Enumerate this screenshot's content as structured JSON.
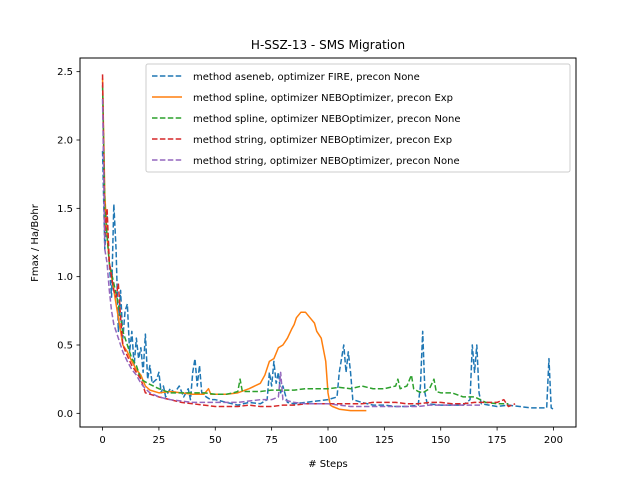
{
  "chart_data": {
    "type": "line",
    "title": "H-SSZ-13 - SMS Migration",
    "xlabel": "# Steps",
    "ylabel": "Fmax / Ha/Bohr",
    "xlim": [
      -10,
      210
    ],
    "ylim": [
      -0.1,
      2.6
    ],
    "xticks": [
      0,
      25,
      50,
      75,
      100,
      125,
      150,
      175,
      200
    ],
    "yticks": [
      0.0,
      0.5,
      1.0,
      1.5,
      2.0,
      2.5
    ],
    "xtick_labels": [
      "0",
      "25",
      "50",
      "75",
      "100",
      "125",
      "150",
      "175",
      "200"
    ],
    "ytick_labels": [
      "0.0",
      "0.5",
      "1.0",
      "1.5",
      "2.0",
      "2.5"
    ],
    "grid": false,
    "legend_position": "upper-right",
    "series": [
      {
        "name": "method aseneb, optimizer FIRE, precon None",
        "color": "#1f77b4",
        "dash": "dashed",
        "points": [
          [
            0,
            1.92
          ],
          [
            1,
            1.2
          ],
          [
            2,
            1.45
          ],
          [
            3,
            1.1
          ],
          [
            4,
            0.85
          ],
          [
            5,
            1.53
          ],
          [
            6,
            1.2
          ],
          [
            7,
            0.6
          ],
          [
            8,
            0.9
          ],
          [
            9,
            0.55
          ],
          [
            10,
            0.75
          ],
          [
            11,
            0.8
          ],
          [
            12,
            0.45
          ],
          [
            13,
            0.6
          ],
          [
            14,
            0.35
          ],
          [
            15,
            0.55
          ],
          [
            16,
            0.4
          ],
          [
            17,
            0.48
          ],
          [
            18,
            0.3
          ],
          [
            19,
            0.58
          ],
          [
            20,
            0.25
          ],
          [
            21,
            0.35
          ],
          [
            22,
            0.22
          ],
          [
            24,
            0.25
          ],
          [
            25,
            0.3
          ],
          [
            26,
            0.15
          ],
          [
            27,
            0.2
          ],
          [
            28,
            0.12
          ],
          [
            30,
            0.18
          ],
          [
            32,
            0.15
          ],
          [
            34,
            0.2
          ],
          [
            36,
            0.12
          ],
          [
            38,
            0.18
          ],
          [
            39,
            0.1
          ],
          [
            40,
            0.3
          ],
          [
            41,
            0.4
          ],
          [
            42,
            0.2
          ],
          [
            43,
            0.35
          ],
          [
            44,
            0.15
          ],
          [
            46,
            0.12
          ],
          [
            48,
            0.1
          ],
          [
            50,
            0.1
          ],
          [
            55,
            0.08
          ],
          [
            60,
            0.06
          ],
          [
            65,
            0.08
          ],
          [
            70,
            0.07
          ],
          [
            73,
            0.1
          ],
          [
            74,
            0.3
          ],
          [
            75,
            0.2
          ],
          [
            76,
            0.38
          ],
          [
            77,
            0.22
          ],
          [
            78,
            0.3
          ],
          [
            79,
            0.15
          ],
          [
            80,
            0.2
          ],
          [
            82,
            0.08
          ],
          [
            85,
            0.07
          ],
          [
            90,
            0.08
          ],
          [
            95,
            0.09
          ],
          [
            100,
            0.1
          ],
          [
            104,
            0.12
          ],
          [
            105,
            0.3
          ],
          [
            107,
            0.5
          ],
          [
            108,
            0.3
          ],
          [
            109,
            0.45
          ],
          [
            110,
            0.3
          ],
          [
            111,
            0.1
          ],
          [
            115,
            0.08
          ],
          [
            120,
            0.06
          ],
          [
            125,
            0.06
          ],
          [
            130,
            0.05
          ],
          [
            135,
            0.05
          ],
          [
            140,
            0.06
          ],
          [
            141,
            0.2
          ],
          [
            142,
            0.6
          ],
          [
            143,
            0.15
          ],
          [
            144,
            0.07
          ],
          [
            150,
            0.06
          ],
          [
            155,
            0.06
          ],
          [
            160,
            0.06
          ],
          [
            163,
            0.1
          ],
          [
            164,
            0.5
          ],
          [
            165,
            0.3
          ],
          [
            166,
            0.5
          ],
          [
            167,
            0.15
          ],
          [
            168,
            0.07
          ],
          [
            175,
            0.05
          ],
          [
            180,
            0.06
          ],
          [
            185,
            0.05
          ],
          [
            190,
            0.04
          ],
          [
            195,
            0.04
          ],
          [
            197,
            0.04
          ],
          [
            198,
            0.4
          ],
          [
            199,
            0.04
          ],
          [
            200,
            0.03
          ]
        ]
      },
      {
        "name": "method spline, optimizer NEBOptimizer, precon Exp",
        "color": "#ff7f0e",
        "dash": "solid",
        "points": [
          [
            0,
            2.45
          ],
          [
            1,
            1.6
          ],
          [
            2,
            1.3
          ],
          [
            3,
            1.1
          ],
          [
            5,
            0.9
          ],
          [
            7,
            0.7
          ],
          [
            9,
            0.5
          ],
          [
            11,
            0.45
          ],
          [
            13,
            0.38
          ],
          [
            15,
            0.32
          ],
          [
            17,
            0.28
          ],
          [
            19,
            0.2
          ],
          [
            21,
            0.17
          ],
          [
            25,
            0.15
          ],
          [
            30,
            0.16
          ],
          [
            35,
            0.15
          ],
          [
            40,
            0.14
          ],
          [
            45,
            0.14
          ],
          [
            47,
            0.18
          ],
          [
            48,
            0.14
          ],
          [
            50,
            0.14
          ],
          [
            55,
            0.14
          ],
          [
            60,
            0.15
          ],
          [
            65,
            0.18
          ],
          [
            70,
            0.22
          ],
          [
            72,
            0.28
          ],
          [
            74,
            0.38
          ],
          [
            76,
            0.4
          ],
          [
            78,
            0.48
          ],
          [
            80,
            0.5
          ],
          [
            82,
            0.55
          ],
          [
            84,
            0.62
          ],
          [
            85,
            0.65
          ],
          [
            86,
            0.7
          ],
          [
            88,
            0.74
          ],
          [
            90,
            0.74
          ],
          [
            92,
            0.7
          ],
          [
            94,
            0.66
          ],
          [
            95,
            0.6
          ],
          [
            97,
            0.55
          ],
          [
            99,
            0.38
          ],
          [
            100,
            0.15
          ],
          [
            101,
            0.06
          ],
          [
            102,
            0.05
          ],
          [
            105,
            0.03
          ],
          [
            110,
            0.02
          ],
          [
            115,
            0.02
          ],
          [
            117,
            0.02
          ]
        ]
      },
      {
        "name": "method spline, optimizer NEBOptimizer, precon None",
        "color": "#2ca02c",
        "dash": "dashed",
        "points": [
          [
            0,
            2.4
          ],
          [
            1,
            1.5
          ],
          [
            2,
            1.3
          ],
          [
            3,
            1.1
          ],
          [
            5,
            0.95
          ],
          [
            7,
            0.8
          ],
          [
            9,
            0.6
          ],
          [
            11,
            0.5
          ],
          [
            13,
            0.4
          ],
          [
            15,
            0.35
          ],
          [
            17,
            0.25
          ],
          [
            20,
            0.22
          ],
          [
            25,
            0.18
          ],
          [
            30,
            0.15
          ],
          [
            35,
            0.15
          ],
          [
            40,
            0.15
          ],
          [
            45,
            0.15
          ],
          [
            50,
            0.14
          ],
          [
            55,
            0.14
          ],
          [
            58,
            0.15
          ],
          [
            60,
            0.16
          ],
          [
            61,
            0.25
          ],
          [
            62,
            0.16
          ],
          [
            65,
            0.16
          ],
          [
            70,
            0.16
          ],
          [
            75,
            0.17
          ],
          [
            80,
            0.17
          ],
          [
            85,
            0.17
          ],
          [
            90,
            0.18
          ],
          [
            95,
            0.18
          ],
          [
            100,
            0.18
          ],
          [
            105,
            0.19
          ],
          [
            110,
            0.18
          ],
          [
            115,
            0.2
          ],
          [
            120,
            0.18
          ],
          [
            125,
            0.18
          ],
          [
            130,
            0.2
          ],
          [
            131,
            0.25
          ],
          [
            132,
            0.18
          ],
          [
            135,
            0.2
          ],
          [
            137,
            0.28
          ],
          [
            138,
            0.18
          ],
          [
            140,
            0.16
          ],
          [
            142,
            0.15
          ],
          [
            145,
            0.18
          ],
          [
            147,
            0.25
          ],
          [
            148,
            0.16
          ],
          [
            150,
            0.15
          ],
          [
            155,
            0.15
          ],
          [
            160,
            0.12
          ],
          [
            165,
            0.12
          ],
          [
            170,
            0.08
          ],
          [
            175,
            0.07
          ],
          [
            180,
            0.07
          ]
        ]
      },
      {
        "name": "method string, optimizer NEBOptimizer, precon Exp",
        "color": "#d62728",
        "dash": "dashed",
        "points": [
          [
            0,
            2.48
          ],
          [
            1,
            1.3
          ],
          [
            2,
            1.5
          ],
          [
            3,
            1.1
          ],
          [
            4,
            1.0
          ],
          [
            5,
            0.9
          ],
          [
            6,
            0.85
          ],
          [
            7,
            0.95
          ],
          [
            8,
            0.7
          ],
          [
            9,
            0.5
          ],
          [
            11,
            0.42
          ],
          [
            13,
            0.35
          ],
          [
            15,
            0.3
          ],
          [
            17,
            0.25
          ],
          [
            19,
            0.15
          ],
          [
            21,
            0.14
          ],
          [
            25,
            0.12
          ],
          [
            30,
            0.1
          ],
          [
            35,
            0.08
          ],
          [
            40,
            0.07
          ],
          [
            45,
            0.06
          ],
          [
            50,
            0.05
          ],
          [
            55,
            0.05
          ],
          [
            60,
            0.05
          ],
          [
            65,
            0.06
          ],
          [
            70,
            0.05
          ],
          [
            75,
            0.05
          ],
          [
            80,
            0.06
          ],
          [
            85,
            0.06
          ],
          [
            90,
            0.07
          ],
          [
            95,
            0.07
          ],
          [
            100,
            0.07
          ],
          [
            105,
            0.07
          ],
          [
            110,
            0.07
          ],
          [
            115,
            0.07
          ],
          [
            120,
            0.08
          ],
          [
            125,
            0.08
          ],
          [
            130,
            0.08
          ],
          [
            135,
            0.07
          ],
          [
            140,
            0.07
          ],
          [
            145,
            0.08
          ],
          [
            150,
            0.08
          ],
          [
            155,
            0.07
          ],
          [
            160,
            0.07
          ],
          [
            165,
            0.08
          ],
          [
            170,
            0.08
          ],
          [
            175,
            0.08
          ],
          [
            178,
            0.1
          ],
          [
            180,
            0.05
          ],
          [
            183,
            0.07
          ]
        ]
      },
      {
        "name": "method string, optimizer NEBOptimizer, precon None",
        "color": "#9467bd",
        "dash": "dashed",
        "points": [
          [
            0,
            2.3
          ],
          [
            1,
            1.2
          ],
          [
            2,
            1.1
          ],
          [
            3,
            0.9
          ],
          [
            4,
            0.75
          ],
          [
            5,
            0.65
          ],
          [
            6,
            0.6
          ],
          [
            7,
            0.55
          ],
          [
            9,
            0.45
          ],
          [
            11,
            0.38
          ],
          [
            13,
            0.32
          ],
          [
            15,
            0.28
          ],
          [
            17,
            0.22
          ],
          [
            19,
            0.18
          ],
          [
            21,
            0.15
          ],
          [
            25,
            0.12
          ],
          [
            30,
            0.1
          ],
          [
            35,
            0.09
          ],
          [
            40,
            0.08
          ],
          [
            45,
            0.08
          ],
          [
            50,
            0.08
          ],
          [
            55,
            0.08
          ],
          [
            60,
            0.08
          ],
          [
            65,
            0.09
          ],
          [
            70,
            0.1
          ],
          [
            75,
            0.1
          ],
          [
            78,
            0.12
          ],
          [
            79,
            0.3
          ],
          [
            80,
            0.1
          ],
          [
            85,
            0.08
          ],
          [
            90,
            0.07
          ],
          [
            95,
            0.07
          ],
          [
            100,
            0.07
          ],
          [
            105,
            0.06
          ],
          [
            110,
            0.05
          ],
          [
            115,
            0.05
          ],
          [
            120,
            0.05
          ],
          [
            125,
            0.05
          ],
          [
            130,
            0.05
          ],
          [
            135,
            0.05
          ],
          [
            140,
            0.05
          ],
          [
            145,
            0.06
          ],
          [
            150,
            0.06
          ],
          [
            155,
            0.06
          ],
          [
            160,
            0.06
          ],
          [
            165,
            0.06
          ],
          [
            168,
            0.06
          ]
        ]
      }
    ]
  }
}
